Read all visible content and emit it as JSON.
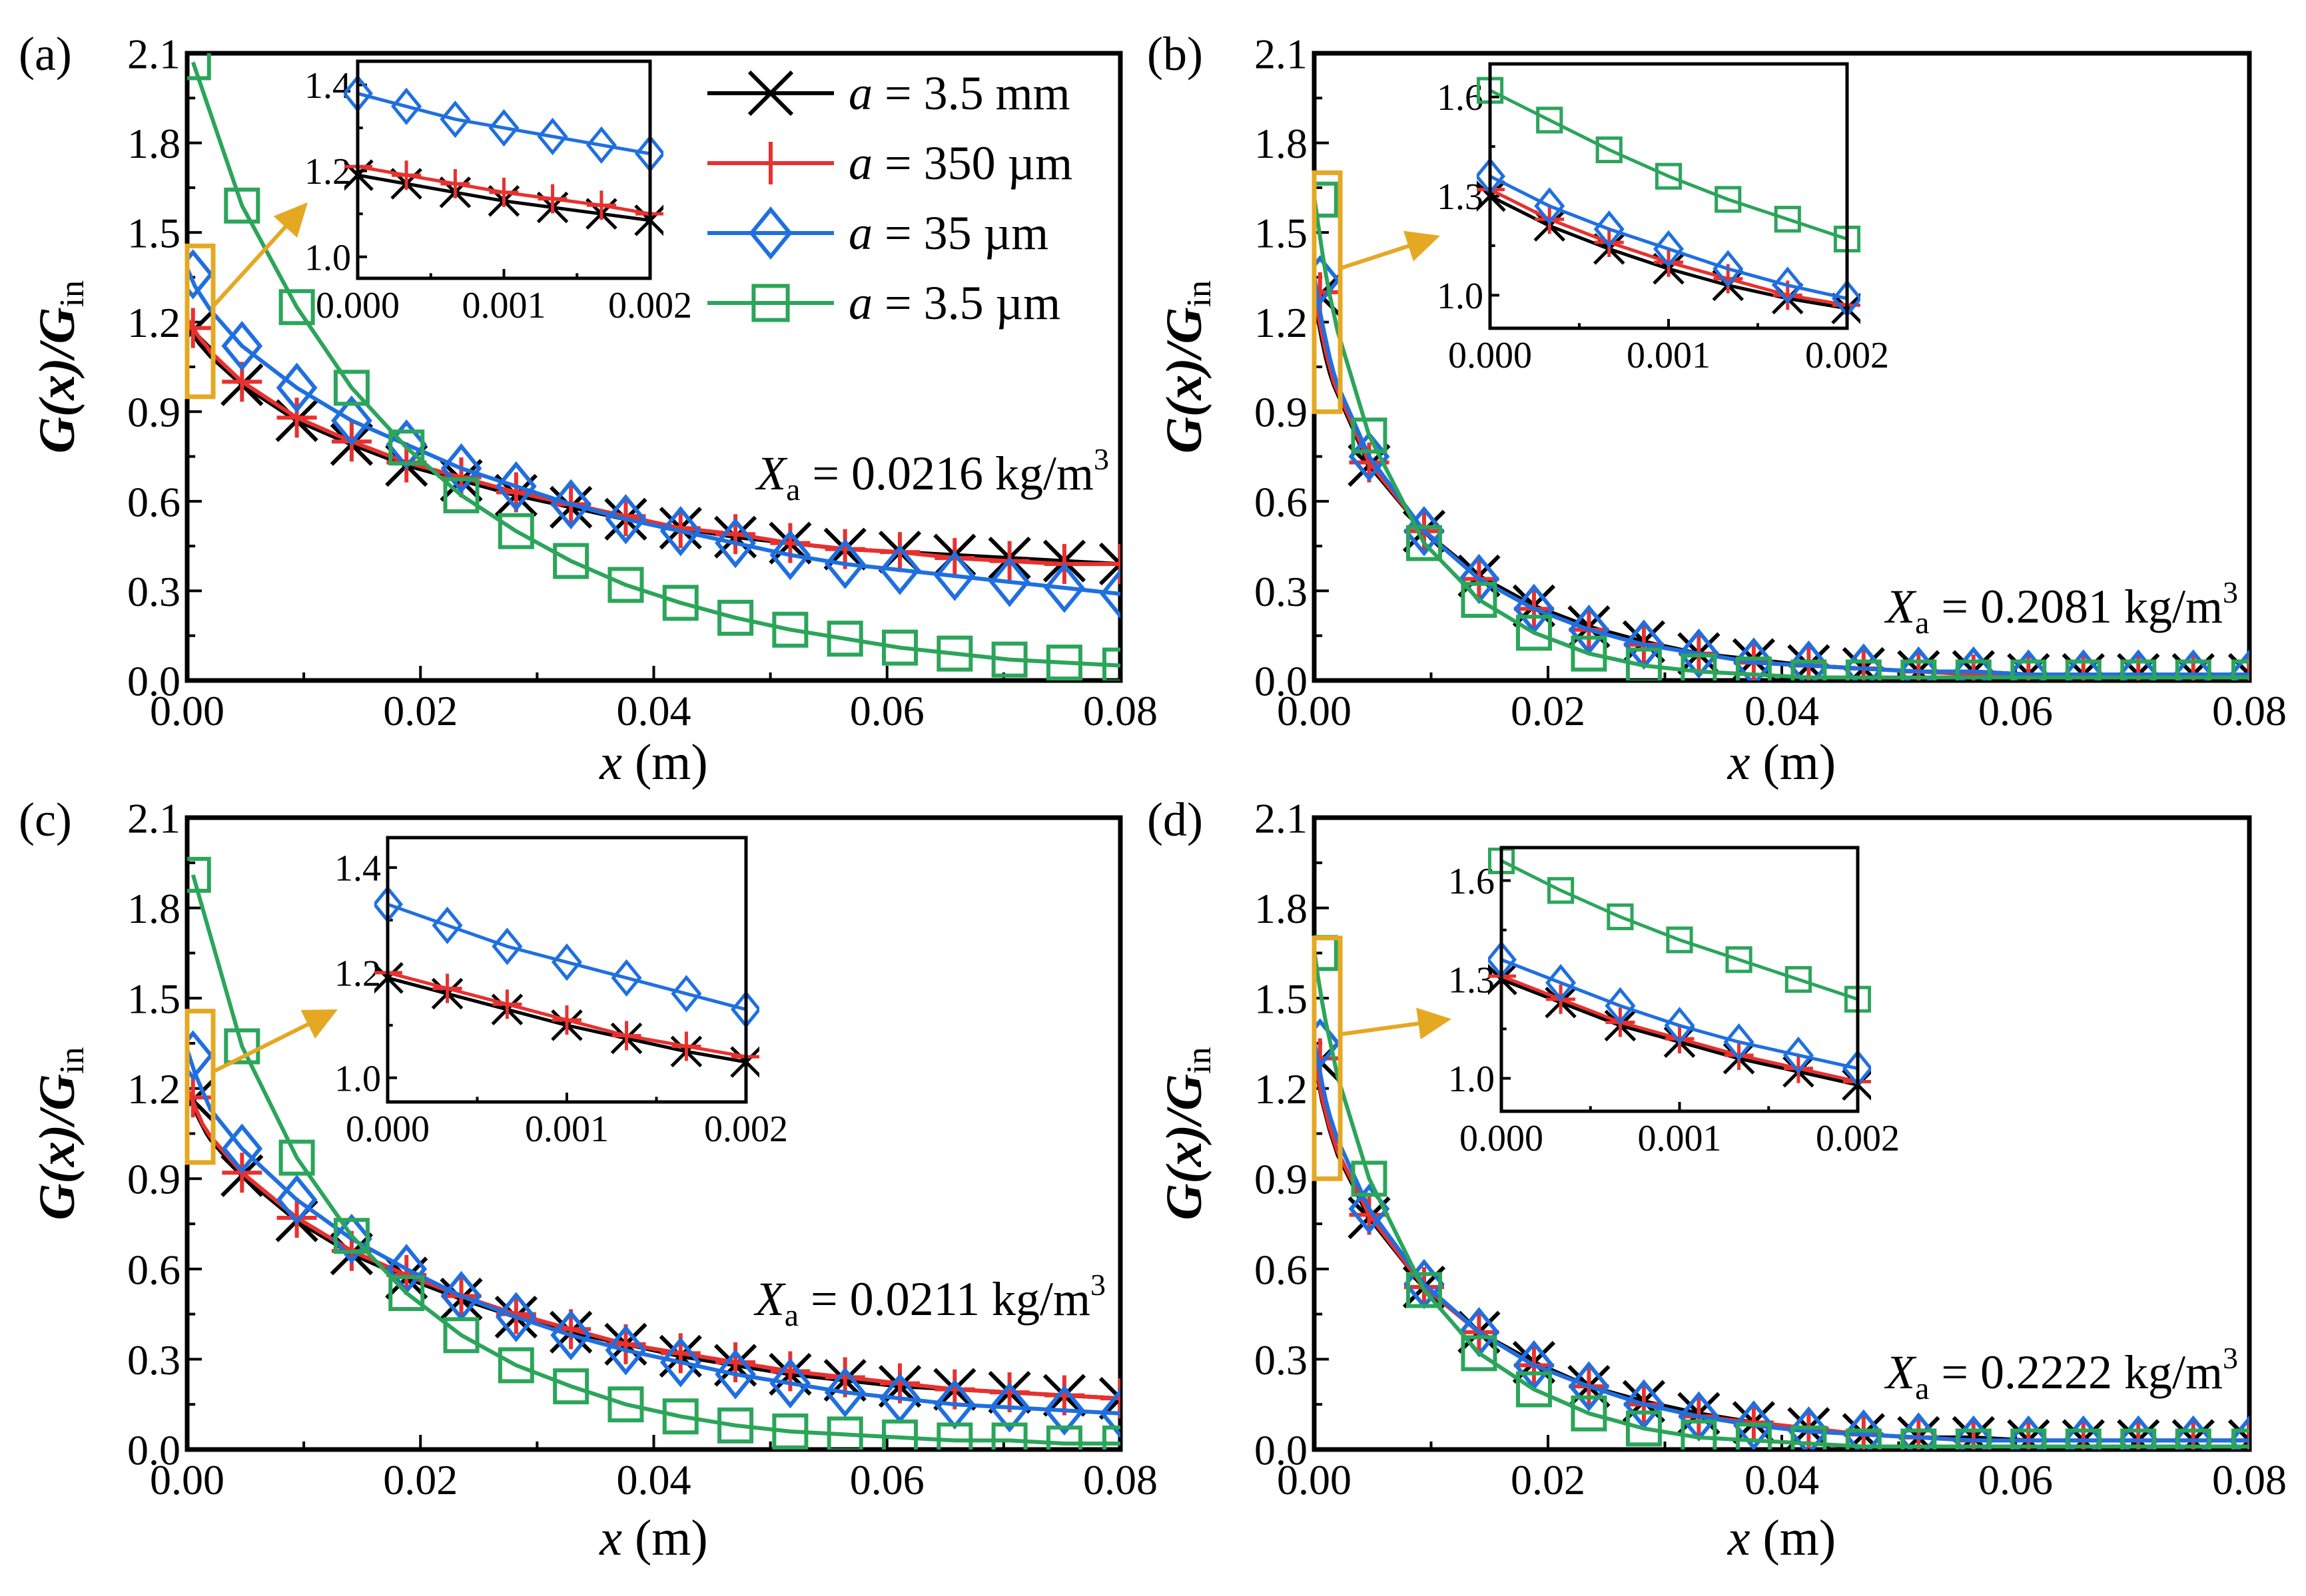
{
  "chart_data": [
    {
      "panel_label": "(a)",
      "type": "line",
      "xlabel": {
        "var": "x",
        "unit": " (m)"
      },
      "ylabel": {
        "main": "G(x)/G",
        "sub": "in"
      },
      "xlim": [
        0,
        0.08
      ],
      "ylim": [
        0,
        2.1
      ],
      "xticks": [
        "0.00",
        "0.02",
        "0.04",
        "0.06",
        "0.08"
      ],
      "yticks": [
        "0.0",
        "0.3",
        "0.6",
        "0.9",
        "1.2",
        "1.5",
        "1.8",
        "2.1"
      ],
      "annotation": {
        "var": "X",
        "sub": "a",
        "text": " = 0.0216 kg/m",
        "sup": "3"
      },
      "x": [
        0.0005,
        0.0047,
        0.0094,
        0.0141,
        0.0188,
        0.0235,
        0.0282,
        0.0329,
        0.0376,
        0.0423,
        0.047,
        0.0517,
        0.0564,
        0.0611,
        0.0658,
        0.0705,
        0.0752,
        0.08
      ],
      "series": [
        {
          "name": "a = 3.5 mm",
          "values": [
            1.17,
            0.99,
            0.87,
            0.79,
            0.72,
            0.67,
            0.62,
            0.58,
            0.54,
            0.51,
            0.48,
            0.46,
            0.44,
            0.43,
            0.42,
            0.41,
            0.4,
            0.39
          ]
        },
        {
          "name": "a = 350 µm",
          "values": [
            1.18,
            1.0,
            0.88,
            0.8,
            0.73,
            0.68,
            0.63,
            0.59,
            0.55,
            0.51,
            0.49,
            0.46,
            0.44,
            0.43,
            0.41,
            0.4,
            0.39,
            0.39
          ]
        },
        {
          "name": "a = 35 µm",
          "values": [
            1.36,
            1.12,
            0.98,
            0.87,
            0.79,
            0.71,
            0.65,
            0.59,
            0.54,
            0.5,
            0.46,
            0.42,
            0.39,
            0.37,
            0.35,
            0.33,
            0.31,
            0.29
          ]
        },
        {
          "name": "a = 3.5 µm",
          "values": [
            2.07,
            1.59,
            1.25,
            0.98,
            0.78,
            0.62,
            0.5,
            0.4,
            0.32,
            0.26,
            0.21,
            0.17,
            0.14,
            0.11,
            0.09,
            0.07,
            0.06,
            0.05
          ]
        }
      ],
      "inset": {
        "xlim": [
          0,
          0.002
        ],
        "ylim": [
          0.95,
          1.455
        ],
        "xticks": [
          "0.000",
          "0.001",
          "0.002"
        ],
        "yticks": [
          "1.0",
          "1.2",
          "1.4"
        ],
        "x": [
          0,
          0.000333,
          0.000667,
          0.001,
          0.001333,
          0.001667,
          0.002
        ],
        "series": [
          {
            "name": "a = 3.5 mm",
            "values": [
              1.19,
              1.17,
              1.15,
              1.13,
              1.115,
              1.1,
              1.085
            ]
          },
          {
            "name": "a = 350 µm",
            "values": [
              1.21,
              1.19,
              1.17,
              1.15,
              1.135,
              1.12,
              1.1
            ]
          },
          {
            "name": "a = 35 µm",
            "values": [
              1.38,
              1.35,
              1.32,
              1.3,
              1.28,
              1.26,
              1.24
            ]
          },
          {
            "name": "a = 3.5 µm",
            "values": null
          }
        ]
      }
    },
    {
      "panel_label": "(b)",
      "type": "line",
      "xlabel": {
        "var": "x",
        "unit": " (m)"
      },
      "ylabel": {
        "main": "G(x)/G",
        "sub": "in"
      },
      "xlim": [
        0,
        0.08
      ],
      "ylim": [
        0,
        2.1
      ],
      "xticks": [
        "0.00",
        "0.02",
        "0.04",
        "0.06",
        "0.08"
      ],
      "yticks": [
        "0.0",
        "0.3",
        "0.6",
        "0.9",
        "1.2",
        "1.5",
        "1.8",
        "2.1"
      ],
      "annotation": {
        "var": "X",
        "sub": "a",
        "text": " = 0.2081 kg/m",
        "sup": "3"
      },
      "x": [
        0.0005,
        0.0047,
        0.0094,
        0.0141,
        0.0188,
        0.0235,
        0.0282,
        0.0329,
        0.0376,
        0.0423,
        0.047,
        0.0517,
        0.0564,
        0.0611,
        0.0658,
        0.0705,
        0.0752,
        0.08
      ],
      "series": [
        {
          "name": "a = 3.5 mm",
          "values": [
            1.29,
            0.72,
            0.5,
            0.35,
            0.25,
            0.18,
            0.13,
            0.09,
            0.07,
            0.05,
            0.04,
            0.03,
            0.03,
            0.02,
            0.02,
            0.02,
            0.02,
            0.02
          ]
        },
        {
          "name": "a = 350 µm",
          "values": [
            1.3,
            0.73,
            0.5,
            0.34,
            0.24,
            0.17,
            0.12,
            0.09,
            0.06,
            0.05,
            0.04,
            0.03,
            0.02,
            0.02,
            0.02,
            0.02,
            0.02,
            0.02
          ]
        },
        {
          "name": "a = 35 µm",
          "values": [
            1.34,
            0.75,
            0.5,
            0.34,
            0.24,
            0.17,
            0.12,
            0.09,
            0.06,
            0.05,
            0.04,
            0.03,
            0.03,
            0.02,
            0.02,
            0.02,
            0.02,
            0.02
          ]
        },
        {
          "name": "a = 3.5 µm",
          "values": [
            1.61,
            0.82,
            0.46,
            0.27,
            0.16,
            0.09,
            0.05,
            0.03,
            0.02,
            0.01,
            0.01,
            0.01,
            0.01,
            0.01,
            0.01,
            0.01,
            0.01,
            0.01
          ]
        }
      ],
      "inset": {
        "xlim": [
          0,
          0.002
        ],
        "ylim": [
          0.9,
          1.7
        ],
        "xticks": [
          "0.000",
          "0.001",
          "0.002"
        ],
        "yticks": [
          "1.0",
          "1.3",
          "1.6"
        ],
        "x": [
          0,
          0.000333,
          0.000667,
          0.001,
          0.001333,
          0.001667,
          0.002
        ],
        "series": [
          {
            "name": "a = 3.5 mm",
            "values": [
              1.3,
              1.21,
              1.14,
              1.08,
              1.03,
              0.99,
              0.96
            ]
          },
          {
            "name": "a = 350 µm",
            "values": [
              1.32,
              1.23,
              1.16,
              1.1,
              1.05,
              1.0,
              0.97
            ]
          },
          {
            "name": "a = 35 µm",
            "values": [
              1.36,
              1.27,
              1.2,
              1.14,
              1.08,
              1.03,
              0.99
            ]
          },
          {
            "name": "a = 3.5 µm",
            "values": [
              1.62,
              1.53,
              1.44,
              1.36,
              1.29,
              1.23,
              1.17
            ]
          }
        ]
      }
    },
    {
      "panel_label": "(c)",
      "type": "line",
      "xlabel": {
        "var": "x",
        "unit": " (m)"
      },
      "ylabel": {
        "main": "G(x)/G",
        "sub": "in"
      },
      "xlim": [
        0,
        0.08
      ],
      "ylim": [
        0,
        2.1
      ],
      "xticks": [
        "0.00",
        "0.02",
        "0.04",
        "0.06",
        "0.08"
      ],
      "yticks": [
        "0.0",
        "0.3",
        "0.6",
        "0.9",
        "1.2",
        "1.5",
        "1.8",
        "2.1"
      ],
      "annotation": {
        "var": "X",
        "sub": "a",
        "text": " = 0.0211 kg/m",
        "sup": "3"
      },
      "x": [
        0.0005,
        0.0047,
        0.0094,
        0.0141,
        0.0188,
        0.0235,
        0.0282,
        0.0329,
        0.0376,
        0.0423,
        0.047,
        0.0517,
        0.0564,
        0.0611,
        0.0658,
        0.0705,
        0.0752,
        0.08
      ],
      "series": [
        {
          "name": "a = 3.5 mm",
          "values": [
            1.16,
            0.91,
            0.76,
            0.65,
            0.57,
            0.5,
            0.44,
            0.39,
            0.35,
            0.31,
            0.28,
            0.25,
            0.23,
            0.21,
            0.2,
            0.19,
            0.18,
            0.17
          ]
        },
        {
          "name": "a = 350 µm",
          "values": [
            1.17,
            0.92,
            0.77,
            0.66,
            0.58,
            0.51,
            0.45,
            0.4,
            0.35,
            0.32,
            0.29,
            0.26,
            0.24,
            0.22,
            0.2,
            0.19,
            0.18,
            0.17
          ]
        },
        {
          "name": "a = 35 µm",
          "values": [
            1.31,
            1.0,
            0.83,
            0.7,
            0.6,
            0.51,
            0.44,
            0.38,
            0.33,
            0.29,
            0.25,
            0.22,
            0.19,
            0.17,
            0.15,
            0.14,
            0.13,
            0.12
          ]
        },
        {
          "name": "a = 3.5 µm",
          "values": [
            1.91,
            1.34,
            0.97,
            0.71,
            0.52,
            0.38,
            0.28,
            0.21,
            0.15,
            0.11,
            0.08,
            0.06,
            0.05,
            0.04,
            0.03,
            0.03,
            0.02,
            0.02
          ]
        }
      ],
      "inset": {
        "xlim": [
          0,
          0.002
        ],
        "ylim": [
          0.954,
          1.457
        ],
        "xticks": [
          "0.000",
          "0.001",
          "0.002"
        ],
        "yticks": [
          "1.0",
          "1.2",
          "1.4"
        ],
        "x": [
          0,
          0.000333,
          0.000667,
          0.001,
          0.001333,
          0.001667,
          0.002
        ],
        "series": [
          {
            "name": "a = 3.5 mm",
            "values": [
              1.19,
              1.16,
              1.13,
              1.1,
              1.075,
              1.05,
              1.03
            ]
          },
          {
            "name": "a = 350 µm",
            "values": [
              1.2,
              1.17,
              1.14,
              1.11,
              1.08,
              1.06,
              1.04
            ]
          },
          {
            "name": "a = 35 µm",
            "values": [
              1.33,
              1.29,
              1.25,
              1.22,
              1.19,
              1.16,
              1.13
            ]
          },
          {
            "name": "a = 3.5 µm",
            "values": null
          }
        ]
      }
    },
    {
      "panel_label": "(d)",
      "type": "line",
      "xlabel": {
        "var": "x",
        "unit": " (m)"
      },
      "ylabel": {
        "main": "G(x)/G",
        "sub": "in"
      },
      "xlim": [
        0,
        0.08
      ],
      "ylim": [
        0,
        2.1
      ],
      "xticks": [
        "0.00",
        "0.02",
        "0.04",
        "0.06",
        "0.08"
      ],
      "yticks": [
        "0.0",
        "0.3",
        "0.6",
        "0.9",
        "1.2",
        "1.5",
        "1.8",
        "2.1"
      ],
      "annotation": {
        "var": "X",
        "sub": "a",
        "text": " = 0.2222 kg/m",
        "sup": "3"
      },
      "x": [
        0.0005,
        0.0047,
        0.0094,
        0.0141,
        0.0188,
        0.0235,
        0.0282,
        0.0329,
        0.0376,
        0.0423,
        0.047,
        0.0517,
        0.0564,
        0.0611,
        0.0658,
        0.0705,
        0.0752,
        0.08
      ],
      "series": [
        {
          "name": "a = 3.5 mm",
          "values": [
            1.29,
            0.77,
            0.54,
            0.39,
            0.29,
            0.21,
            0.16,
            0.12,
            0.09,
            0.07,
            0.05,
            0.04,
            0.04,
            0.03,
            0.03,
            0.03,
            0.03,
            0.03
          ]
        },
        {
          "name": "a = 350 µm",
          "values": [
            1.3,
            0.78,
            0.54,
            0.39,
            0.28,
            0.21,
            0.15,
            0.11,
            0.09,
            0.07,
            0.05,
            0.04,
            0.03,
            0.03,
            0.03,
            0.03,
            0.03,
            0.03
          ]
        },
        {
          "name": "a = 35 µm",
          "values": [
            1.35,
            0.8,
            0.55,
            0.39,
            0.28,
            0.21,
            0.15,
            0.11,
            0.08,
            0.06,
            0.05,
            0.04,
            0.03,
            0.03,
            0.03,
            0.03,
            0.03,
            0.03
          ]
        },
        {
          "name": "a = 3.5 µm",
          "values": [
            1.65,
            0.9,
            0.53,
            0.32,
            0.2,
            0.12,
            0.07,
            0.04,
            0.03,
            0.02,
            0.01,
            0.01,
            0.01,
            0.01,
            0.01,
            0.01,
            0.01,
            0.01
          ]
        }
      ],
      "inset": {
        "xlim": [
          0,
          0.002
        ],
        "ylim": [
          0.9,
          1.7
        ],
        "xticks": [
          "0.000",
          "0.001",
          "0.002"
        ],
        "yticks": [
          "1.0",
          "1.3",
          "1.6"
        ],
        "x": [
          0,
          0.000333,
          0.000667,
          0.001,
          0.001333,
          0.001667,
          0.002
        ],
        "series": [
          {
            "name": "a = 3.5 mm",
            "values": [
              1.3,
              1.23,
              1.16,
              1.11,
              1.06,
              1.02,
              0.98
            ]
          },
          {
            "name": "a = 350 µm",
            "values": [
              1.31,
              1.24,
              1.17,
              1.12,
              1.07,
              1.03,
              0.99
            ]
          },
          {
            "name": "a = 35 µm",
            "values": [
              1.36,
              1.29,
              1.22,
              1.16,
              1.11,
              1.07,
              1.03
            ]
          },
          {
            "name": "a = 3.5 µm",
            "values": [
              1.66,
              1.57,
              1.49,
              1.42,
              1.36,
              1.3,
              1.24
            ]
          }
        ]
      }
    }
  ],
  "legend": {
    "placement": "top-right of panel (a)",
    "entries": [
      {
        "var": "a",
        "text": " = 3.5 mm",
        "marker": "x-icon",
        "color": "#000000"
      },
      {
        "var": "a",
        "text": " = 350 µm",
        "marker": "plus-icon",
        "color": "#e8312f"
      },
      {
        "var": "a",
        "text": " = 35 µm",
        "marker": "diamond-icon",
        "color": "#1f6fe0"
      },
      {
        "var": "a",
        "text": " = 3.5 µm",
        "marker": "square-icon",
        "color": "#2ba55a"
      }
    ]
  },
  "colors": {
    "zoom_box": "#e5a823",
    "axis": "#000000"
  }
}
